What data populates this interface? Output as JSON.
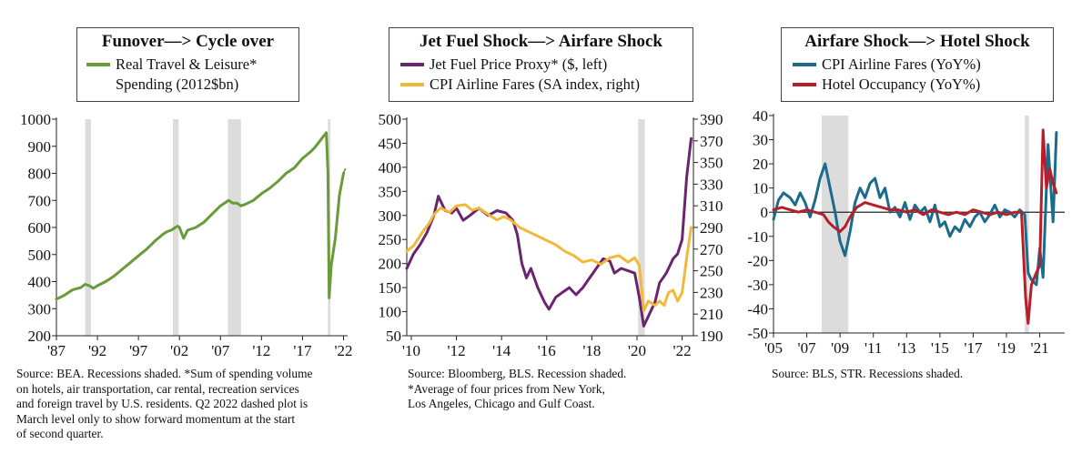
{
  "colors": {
    "green": "#6a9a3a",
    "purple": "#6b2470",
    "yellow": "#f2b83a",
    "teal": "#1b6c8c",
    "red": "#b81e2a",
    "recession": "#dcdcdc",
    "axis": "#222222"
  },
  "chart_data": [
    {
      "type": "line",
      "title": "Funover—> Cycle over",
      "legend": {
        "series_label": "Real Travel & Leisure*",
        "series_label_cont": "Spending (2012$bn)"
      },
      "y_ticks": [
        "1000",
        "900",
        "800",
        "700",
        "600",
        "500",
        "400",
        "300",
        "200"
      ],
      "x_ticks": [
        "'87",
        "'92",
        "'97",
        "'02",
        "'07",
        "'12",
        "'17",
        "'22"
      ],
      "ylim": [
        200,
        1000
      ],
      "xlim": [
        1987,
        2022.5
      ],
      "recessions": [
        [
          1990.5,
          1991.2
        ],
        [
          2001.2,
          2001.9
        ],
        [
          2007.9,
          2009.5
        ],
        [
          2020.1,
          2020.4
        ]
      ],
      "series": [
        {
          "name": "Real Travel & Leisure* Spending (2012$bn)",
          "color": "green",
          "x": [
            1987,
            1988,
            1989,
            1990,
            1990.5,
            1991,
            1991.5,
            1992,
            1993,
            1994,
            1995,
            1996,
            1997,
            1998,
            1999,
            2000,
            2000.5,
            2001,
            2001.5,
            2001.8,
            2002,
            2002.5,
            2003,
            2004,
            2005,
            2006,
            2007,
            2008,
            2008.5,
            2009,
            2009.5,
            2010,
            2011,
            2012,
            2013,
            2014,
            2015,
            2016,
            2017,
            2018,
            2018.5,
            2019,
            2019.5,
            2019.9,
            2020.1,
            2020.25,
            2020.5,
            2021,
            2021.5,
            2022
          ],
          "y": [
            335,
            350,
            370,
            378,
            390,
            385,
            375,
            385,
            400,
            420,
            445,
            470,
            495,
            520,
            550,
            575,
            585,
            590,
            600,
            605,
            600,
            560,
            590,
            600,
            620,
            650,
            680,
            700,
            690,
            690,
            680,
            685,
            700,
            725,
            745,
            770,
            800,
            820,
            855,
            880,
            895,
            915,
            935,
            950,
            800,
            340,
            460,
            560,
            720,
            800
          ]
        },
        {
          "name": "Q2 2022 dashed plot",
          "color": "green",
          "dashed": true,
          "x": [
            2022,
            2022.2
          ],
          "y": [
            800,
            815
          ]
        }
      ]
    },
    {
      "type": "line",
      "title": "Jet Fuel Shock—> Airfare Shock",
      "legend": {
        "series1_label": "Jet Fuel Price Proxy* ($, left)",
        "series2_label": "CPI Airline Fares (SA index, right)"
      },
      "y_ticks_left": [
        "500",
        "450",
        "400",
        "350",
        "300",
        "250",
        "200",
        "150",
        "100",
        "50"
      ],
      "y_ticks_right": [
        "390",
        "370",
        "350",
        "330",
        "310",
        "290",
        "270",
        "250",
        "230",
        "210",
        "190"
      ],
      "x_ticks": [
        "'10",
        "'12",
        "'14",
        "'16",
        "'18",
        "'20",
        "'22"
      ],
      "ylim_left": [
        50,
        500
      ],
      "ylim_right": [
        190,
        390
      ],
      "xlim": [
        2009.8,
        2022.5
      ],
      "recessions": [
        [
          2020.05,
          2020.35
        ]
      ],
      "series": [
        {
          "name": "Jet Fuel Price Proxy* ($, left)",
          "color": "purple",
          "axis": "left",
          "x": [
            2009.8,
            2010.1,
            2010.4,
            2010.7,
            2011,
            2011.2,
            2011.5,
            2011.8,
            2012,
            2012.3,
            2012.6,
            2013,
            2013.4,
            2013.8,
            2014.2,
            2014.5,
            2014.7,
            2014.9,
            2015.1,
            2015.3,
            2015.6,
            2015.9,
            2016.1,
            2016.4,
            2016.7,
            2017,
            2017.3,
            2017.6,
            2017.9,
            2018.2,
            2018.5,
            2018.8,
            2019,
            2019.3,
            2019.6,
            2019.9,
            2020.1,
            2020.3,
            2020.5,
            2020.8,
            2021,
            2021.3,
            2021.6,
            2021.8,
            2022,
            2022.2,
            2022.4
          ],
          "y": [
            190,
            220,
            240,
            265,
            300,
            340,
            310,
            305,
            315,
            290,
            300,
            315,
            300,
            310,
            305,
            290,
            260,
            200,
            170,
            190,
            150,
            120,
            105,
            130,
            140,
            150,
            135,
            150,
            170,
            190,
            210,
            205,
            180,
            190,
            185,
            180,
            130,
            70,
            90,
            120,
            160,
            180,
            210,
            220,
            250,
            380,
            460
          ]
        },
        {
          "name": "CPI Airline Fares (SA index, right)",
          "color": "yellow",
          "axis": "right",
          "x": [
            2009.8,
            2010.1,
            2010.5,
            2010.8,
            2011,
            2011.3,
            2011.7,
            2012,
            2012.4,
            2012.7,
            2013,
            2013.4,
            2013.8,
            2014.1,
            2014.4,
            2014.8,
            2015.2,
            2015.6,
            2016,
            2016.4,
            2016.8,
            2017.2,
            2017.6,
            2018,
            2018.4,
            2018.8,
            2019.2,
            2019.6,
            2019.9,
            2020.1,
            2020.3,
            2020.5,
            2020.8,
            2021,
            2021.2,
            2021.4,
            2021.6,
            2021.8,
            2022,
            2022.2,
            2022.4
          ],
          "y": [
            268,
            273,
            286,
            294,
            302,
            308,
            304,
            310,
            311,
            306,
            308,
            302,
            297,
            300,
            297,
            290,
            286,
            282,
            278,
            274,
            268,
            264,
            258,
            260,
            256,
            262,
            264,
            258,
            262,
            255,
            213,
            222,
            218,
            222,
            218,
            230,
            232,
            222,
            230,
            262,
            290
          ]
        }
      ]
    },
    {
      "type": "line",
      "title": "Airfare Shock—> Hotel Shock",
      "legend": {
        "series1_label": "CPI Airline Fares (YoY%)",
        "series2_label": "Hotel Occupancy (YoY%)"
      },
      "y_ticks": [
        "40",
        "30",
        "20",
        "10",
        "0",
        "-10",
        "-20",
        "-30",
        "-40",
        "-50"
      ],
      "x_ticks": [
        "'05",
        "'07",
        "'09",
        "'11",
        "'13",
        "'15",
        "'17",
        "'19",
        "'21"
      ],
      "ylim": [
        -50,
        40
      ],
      "xlim": [
        2005,
        2022.5
      ],
      "recessions": [
        [
          2007.9,
          2009.5
        ],
        [
          2020.1,
          2020.35
        ]
      ],
      "series": [
        {
          "name": "CPI Airline Fares (YoY%)",
          "color": "teal",
          "x": [
            2005,
            2005.3,
            2005.6,
            2006,
            2006.3,
            2006.6,
            2006.9,
            2007.2,
            2007.5,
            2007.8,
            2008.1,
            2008.4,
            2008.7,
            2009,
            2009.3,
            2009.6,
            2009.9,
            2010.2,
            2010.5,
            2010.8,
            2011.1,
            2011.4,
            2011.7,
            2012,
            2012.3,
            2012.6,
            2012.9,
            2013.2,
            2013.5,
            2013.8,
            2014.1,
            2014.4,
            2014.7,
            2015,
            2015.3,
            2015.6,
            2015.9,
            2016.2,
            2016.5,
            2016.8,
            2017.1,
            2017.4,
            2017.7,
            2018,
            2018.3,
            2018.6,
            2018.9,
            2019.2,
            2019.5,
            2019.8,
            2020.1,
            2020.3,
            2020.5,
            2020.8,
            2021,
            2021.2,
            2021.5,
            2021.8,
            2022
          ],
          "y": [
            -3,
            5,
            8,
            6,
            3,
            8,
            4,
            -2,
            5,
            14,
            20,
            10,
            0,
            -12,
            -18,
            -8,
            4,
            10,
            6,
            12,
            14,
            6,
            10,
            0,
            2,
            -2,
            4,
            -3,
            3,
            0,
            2,
            -4,
            3,
            -6,
            -4,
            -10,
            -6,
            -8,
            -3,
            -6,
            -2,
            0,
            -4,
            -1,
            3,
            -2,
            1,
            0,
            -2,
            1,
            -1,
            -25,
            -28,
            -30,
            -15,
            -27,
            28,
            -4,
            33
          ]
        },
        {
          "name": "Hotel Occupancy (YoY%)",
          "color": "red",
          "x": [
            2005,
            2005.5,
            2006,
            2006.5,
            2007,
            2007.5,
            2008,
            2008.3,
            2008.6,
            2009,
            2009.3,
            2009.6,
            2010,
            2010.5,
            2011,
            2011.5,
            2012,
            2012.5,
            2013,
            2013.5,
            2014,
            2014.5,
            2015,
            2015.5,
            2016,
            2016.5,
            2017,
            2017.5,
            2018,
            2018.5,
            2019,
            2019.5,
            2019.9,
            2020.15,
            2020.3,
            2020.5,
            2020.8,
            2021,
            2021.2,
            2021.4,
            2021.6,
            2021.8,
            2022
          ],
          "y": [
            1,
            2,
            1,
            0,
            1,
            0,
            -1,
            -4,
            -6,
            -8,
            -6,
            -2,
            2,
            4,
            3,
            2,
            1,
            1,
            0,
            1,
            -1,
            1,
            0,
            -1,
            0,
            -1,
            1,
            0,
            -1,
            0,
            -1,
            0,
            0,
            -35,
            -46,
            -30,
            -25,
            -22,
            34,
            10,
            18,
            12,
            8
          ]
        }
      ]
    }
  ],
  "notes": {
    "left": [
      "Source: BEA. Recessions shaded. *Sum of spending volume",
      "on hotels, air transportation, car rental, recreation services",
      "and foreign travel by U.S. residents. Q2 2022 dashed plot is",
      "March level only to show forward momentum at the start",
      "of second quarter."
    ],
    "middle": [
      "Source: Bloomberg, BLS. Recession shaded.",
      "*Average of four prices from New York,",
      "Los Angeles, Chicago and Gulf Coast."
    ],
    "right": [
      "Source: BLS, STR. Recessions shaded."
    ]
  }
}
